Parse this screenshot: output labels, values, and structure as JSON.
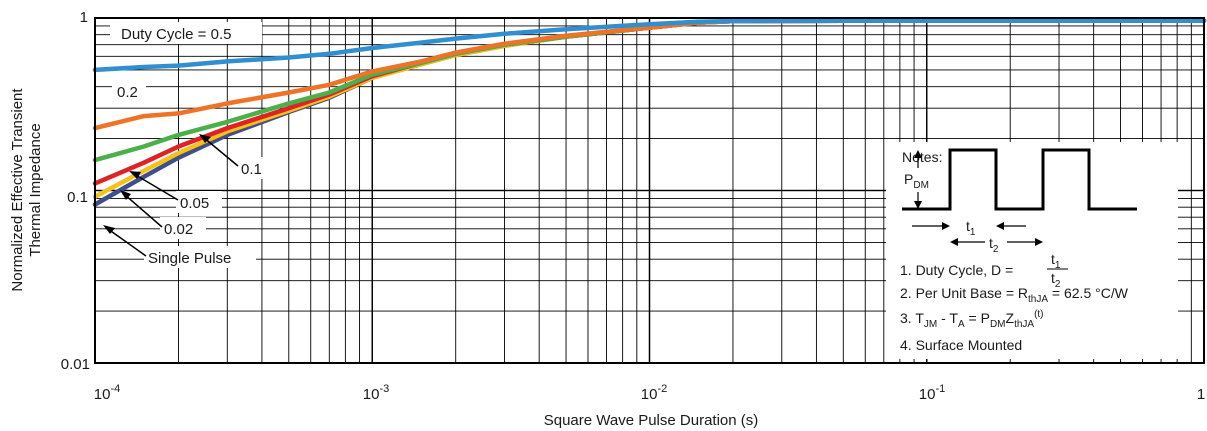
{
  "chart_data": {
    "type": "line",
    "xlabel": "Square Wave Pulse Duration (s)",
    "ylabel_lines": [
      "Normalized Effective Transient",
      "Thermal Impedance"
    ],
    "x_scale": "log",
    "y_scale": "log",
    "xlim": [
      0.0001,
      1
    ],
    "ylim": [
      0.01,
      1
    ],
    "x_ticks": [
      {
        "base": "10",
        "exp": "-4"
      },
      {
        "base": "10",
        "exp": "-3"
      },
      {
        "base": "10",
        "exp": "-2"
      },
      {
        "base": "10",
        "exp": "-1"
      },
      {
        "base": "1",
        "exp": ""
      }
    ],
    "y_ticks": [
      "0.01",
      "0.1",
      "1"
    ],
    "grid": true,
    "series": [
      {
        "name": "Duty Cycle = 0.5",
        "color": "#2f8fd0",
        "x": [
          0.0001,
          0.00015,
          0.0002,
          0.0003,
          0.0005,
          0.0007,
          0.001,
          0.0015,
          0.002,
          0.003,
          0.005,
          0.01,
          0.015,
          0.02,
          0.05,
          0.1,
          0.2,
          0.5,
          1
        ],
        "y": [
          0.5,
          0.52,
          0.53,
          0.56,
          0.59,
          0.62,
          0.67,
          0.72,
          0.76,
          0.81,
          0.86,
          0.92,
          0.95,
          0.96,
          0.965,
          0.965,
          0.965,
          0.965,
          0.965
        ]
      },
      {
        "name": "0.2",
        "color": "#ee7326",
        "x": [
          0.0001,
          0.00015,
          0.0002,
          0.0003,
          0.0005,
          0.0007,
          0.001,
          0.0015,
          0.002,
          0.003,
          0.005,
          0.01,
          0.015,
          0.02,
          0.05,
          0.1,
          0.2,
          0.5,
          1
        ],
        "y": [
          0.23,
          0.27,
          0.28,
          0.32,
          0.37,
          0.41,
          0.49,
          0.56,
          0.63,
          0.71,
          0.79,
          0.88,
          0.94,
          0.96,
          0.965,
          0.965,
          0.965,
          0.965,
          0.965
        ]
      },
      {
        "name": "0.1",
        "color": "#4cb04a",
        "x": [
          0.0001,
          0.00015,
          0.0002,
          0.0003,
          0.0005,
          0.0007,
          0.001,
          0.0015,
          0.002,
          0.003,
          0.005,
          0.01,
          0.015,
          0.02,
          0.05,
          0.1,
          0.2,
          0.5,
          1
        ],
        "y": [
          0.15,
          0.18,
          0.21,
          0.25,
          0.32,
          0.37,
          0.47,
          0.55,
          0.62,
          0.7,
          0.78,
          0.88,
          0.94,
          0.96,
          0.965,
          0.965,
          0.965,
          0.965,
          0.965
        ]
      },
      {
        "name": "0.05",
        "color": "#e02227",
        "x": [
          0.0001,
          0.00015,
          0.0002,
          0.0003,
          0.0005,
          0.0007,
          0.001,
          0.0015,
          0.002,
          0.003,
          0.005,
          0.01,
          0.015,
          0.02,
          0.05,
          0.1,
          0.2,
          0.5,
          1
        ],
        "y": [
          0.11,
          0.145,
          0.18,
          0.23,
          0.3,
          0.36,
          0.46,
          0.55,
          0.62,
          0.7,
          0.78,
          0.88,
          0.94,
          0.96,
          0.965,
          0.965,
          0.965,
          0.965,
          0.965
        ]
      },
      {
        "name": "0.02",
        "color": "#f5c21b",
        "x": [
          0.0001,
          0.00015,
          0.0002,
          0.0003,
          0.0005,
          0.0007,
          0.001,
          0.0015,
          0.002,
          0.003,
          0.005,
          0.01,
          0.015,
          0.02,
          0.05,
          0.1,
          0.2,
          0.5,
          1
        ],
        "y": [
          0.092,
          0.13,
          0.165,
          0.22,
          0.29,
          0.35,
          0.45,
          0.54,
          0.61,
          0.69,
          0.78,
          0.88,
          0.94,
          0.96,
          0.965,
          0.965,
          0.965,
          0.965,
          0.965
        ]
      },
      {
        "name": "Single Pulse",
        "color": "#3e4f8c",
        "x": [
          0.0001,
          0.00015,
          0.0002,
          0.0003,
          0.0005,
          0.0007,
          0.001,
          0.0015,
          0.002,
          0.003,
          0.005,
          0.01,
          0.015,
          0.02,
          0.05,
          0.1,
          0.2,
          0.5,
          1
        ],
        "y": [
          0.083,
          0.12,
          0.155,
          0.21,
          0.285,
          0.345,
          0.45,
          0.54,
          0.61,
          0.69,
          0.78,
          0.88,
          0.94,
          0.96,
          0.965,
          0.965,
          0.965,
          0.965,
          0.965
        ]
      }
    ],
    "curve_labels": [
      {
        "key": "d05",
        "text": "Duty Cycle = 0.5"
      },
      {
        "key": "d02",
        "text": "0.2"
      },
      {
        "key": "d01",
        "text": "0.1"
      },
      {
        "key": "d005",
        "text": "0.05"
      },
      {
        "key": "d002",
        "text": "0.02"
      },
      {
        "key": "single",
        "text": "Single Pulse"
      }
    ],
    "notes": {
      "title": "Notes:",
      "pdm": {
        "main": "P",
        "sub": "DM"
      },
      "t1": {
        "main": "t",
        "sub": "1"
      },
      "t2": {
        "main": "t",
        "sub": "2"
      },
      "note1_prefix": "1. Duty Cycle, D =",
      "note2": {
        "prefix": "2. Per Unit Base = R",
        "sub": "thJA",
        "suffix": " = 62.5 °C/W"
      },
      "note3": {
        "t": "T",
        "jm": "JM",
        "dash": " - T",
        "a": "A",
        "eq": " = P",
        "dm": "DM",
        "z": "Z",
        "thja": "thJA",
        "tsup": "(t)"
      },
      "note4": "4. Surface Mounted"
    }
  }
}
